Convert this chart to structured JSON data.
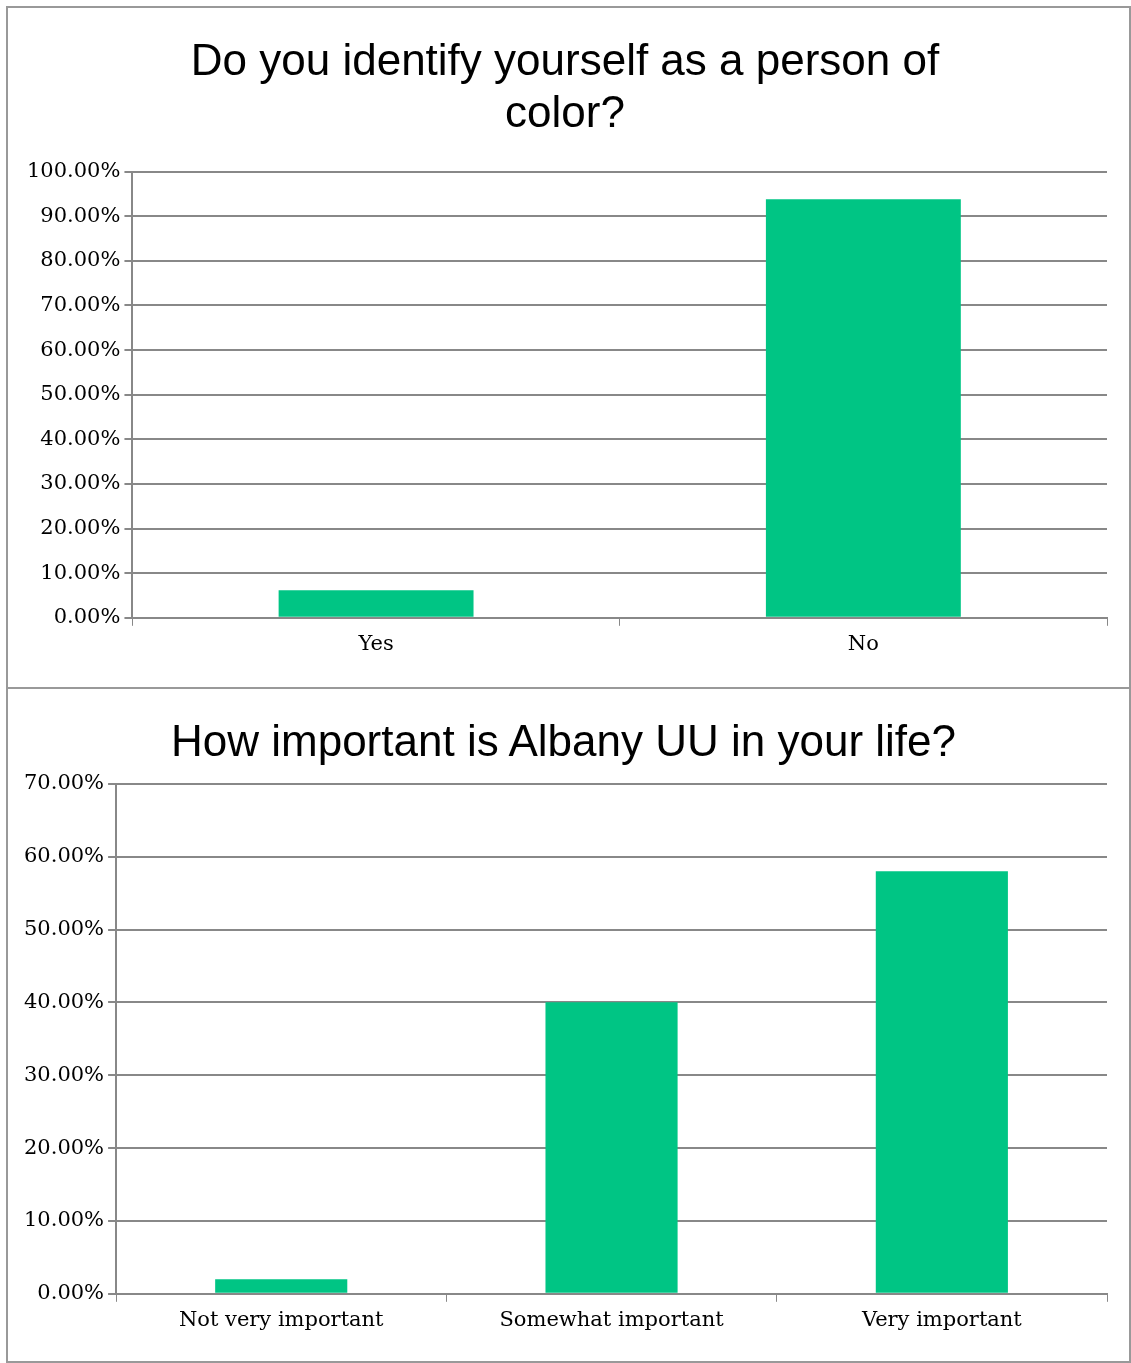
{
  "chart_data": [
    {
      "type": "bar",
      "title": "Do you identify yourself as a person of color?",
      "categories": [
        "Yes",
        "No"
      ],
      "values": [
        6.2,
        93.8
      ],
      "color": "#00c584",
      "ylim": [
        0,
        100
      ],
      "yticks": [
        {
          "value": 0,
          "label": "0.00%"
        },
        {
          "value": 10,
          "label": "10.00%"
        },
        {
          "value": 20,
          "label": "20.00%"
        },
        {
          "value": 30,
          "label": "30.00%"
        },
        {
          "value": 40,
          "label": "40.00%"
        },
        {
          "value": 50,
          "label": "50.00%"
        },
        {
          "value": 60,
          "label": "60.00%"
        },
        {
          "value": 70,
          "label": "70.00%"
        },
        {
          "value": 80,
          "label": "80.00%"
        },
        {
          "value": 90,
          "label": "90.00%"
        },
        {
          "value": 100,
          "label": "100.00%"
        }
      ],
      "grid": "y",
      "legend": false
    },
    {
      "type": "bar",
      "title": "How important is Albany UU in your life?",
      "categories": [
        "Not very important",
        "Somewhat important",
        "Very important"
      ],
      "values": [
        2,
        40,
        58
      ],
      "color": "#00c584",
      "ylim": [
        0,
        70
      ],
      "yticks": [
        {
          "value": 0,
          "label": "0.00%"
        },
        {
          "value": 10,
          "label": "10.00%"
        },
        {
          "value": 20,
          "label": "20.00%"
        },
        {
          "value": 30,
          "label": "30.00%"
        },
        {
          "value": 40,
          "label": "40.00%"
        },
        {
          "value": 50,
          "label": "50.00%"
        },
        {
          "value": 60,
          "label": "60.00%"
        },
        {
          "value": 70,
          "label": "70.00%"
        }
      ],
      "grid": "y",
      "legend": false
    }
  ]
}
